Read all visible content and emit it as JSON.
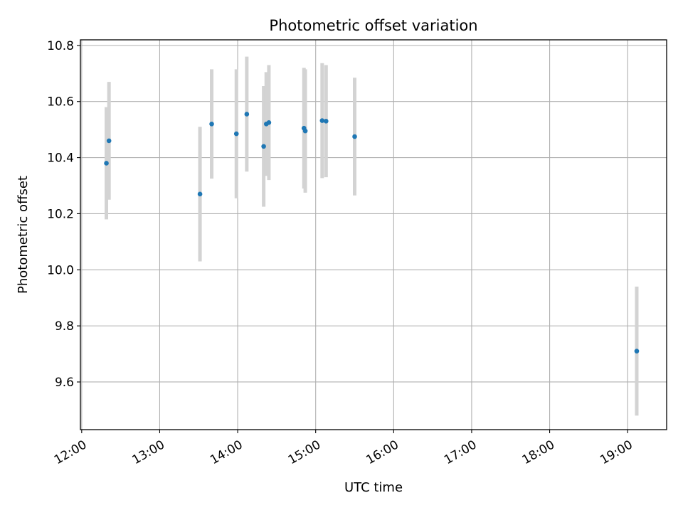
{
  "chart_data": {
    "type": "scatter",
    "title": "Photometric offset variation",
    "xlabel": "UTC time",
    "ylabel": "Photometric offset",
    "x_axis": {
      "kind": "time",
      "range": [
        "11:59",
        "19:30"
      ],
      "ticks": [
        "12:00",
        "13:00",
        "14:00",
        "15:00",
        "16:00",
        "17:00",
        "18:00",
        "19:00"
      ],
      "tick_label_rotation_deg": 30
    },
    "y_axis": {
      "range": [
        9.43,
        10.82
      ],
      "ticks": [
        "9.6",
        "9.8",
        "10.0",
        "10.2",
        "10.4",
        "10.6",
        "10.8"
      ]
    },
    "grid": true,
    "legend": "none",
    "colors": {
      "point": "#1f77b4",
      "errorbar": "#d3d3d3",
      "grid": "#b0b0b0"
    },
    "points": [
      {
        "x": "12:19",
        "y": 10.38,
        "err": 0.2
      },
      {
        "x": "12:21",
        "y": 10.46,
        "err": 0.21
      },
      {
        "x": "13:31",
        "y": 10.27,
        "err": 0.24
      },
      {
        "x": "13:40",
        "y": 10.52,
        "err": 0.195
      },
      {
        "x": "13:59",
        "y": 10.485,
        "err": 0.23
      },
      {
        "x": "14:07",
        "y": 10.555,
        "err": 0.205
      },
      {
        "x": "14:20",
        "y": 10.44,
        "err": 0.215
      },
      {
        "x": "14:22",
        "y": 10.52,
        "err": 0.185
      },
      {
        "x": "14:24",
        "y": 10.525,
        "err": 0.205
      },
      {
        "x": "14:51",
        "y": 10.505,
        "err": 0.215
      },
      {
        "x": "14:52",
        "y": 10.495,
        "err": 0.22
      },
      {
        "x": "15:05",
        "y": 10.532,
        "err": 0.205
      },
      {
        "x": "15:08",
        "y": 10.53,
        "err": 0.2
      },
      {
        "x": "15:30",
        "y": 10.475,
        "err": 0.21
      },
      {
        "x": "19:07",
        "y": 9.71,
        "err": 0.23
      }
    ]
  }
}
